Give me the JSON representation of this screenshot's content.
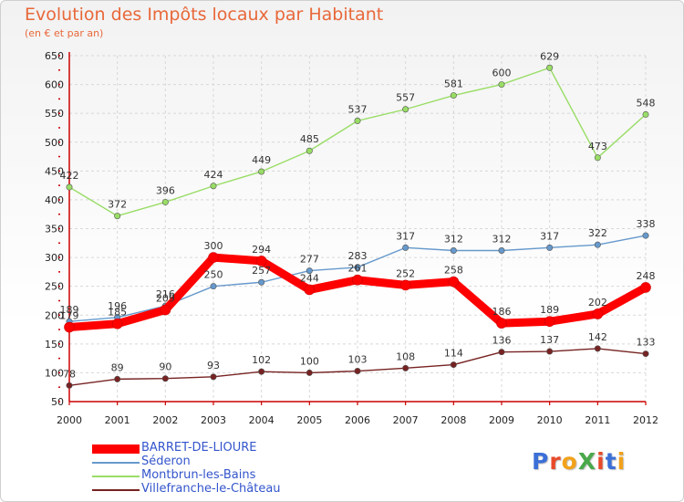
{
  "title": "Evolution des Impôts locaux par Habitant",
  "subtitle": "(en € et par an)",
  "logo_text": "ProXiti",
  "logo_colors": [
    "#3b6fd8",
    "#e84a2a",
    "#f2a21b",
    "#4aa84a",
    "#e84a2a",
    "#3b6fd8",
    "#f2a21b"
  ],
  "chart_data": {
    "type": "line",
    "title": "Evolution des Impôts locaux par Habitant",
    "subtitle": "(en € et par an)",
    "xlabel": "",
    "ylabel": "",
    "x": [
      "2000",
      "2001",
      "2002",
      "2003",
      "2004",
      "2005",
      "2006",
      "2007",
      "2008",
      "2009",
      "2010",
      "2011",
      "2012"
    ],
    "ylim": [
      50,
      650
    ],
    "yticks": [
      50,
      100,
      150,
      200,
      250,
      300,
      350,
      400,
      450,
      500,
      550,
      600,
      650
    ],
    "grid": true,
    "legend_position": "bottom-left",
    "series": [
      {
        "name": "BARRET-DE-LIOURE",
        "color": "#ff0000",
        "values": [
          179,
          185,
          209,
          300,
          294,
          244,
          261,
          252,
          258,
          186,
          189,
          202,
          248
        ]
      },
      {
        "name": "Séderon",
        "color": "#6699cc",
        "values": [
          189,
          196,
          216,
          250,
          257,
          277,
          283,
          317,
          312,
          312,
          317,
          322,
          338
        ]
      },
      {
        "name": "Montbrun-les-Bains",
        "color": "#99dd66",
        "values": [
          422,
          372,
          396,
          424,
          449,
          485,
          537,
          557,
          581,
          600,
          629,
          473,
          548
        ]
      },
      {
        "name": "Villefranche-le-Château",
        "color": "#772222",
        "values": [
          78,
          89,
          90,
          93,
          102,
          100,
          103,
          108,
          114,
          136,
          137,
          142,
          133
        ]
      }
    ]
  }
}
